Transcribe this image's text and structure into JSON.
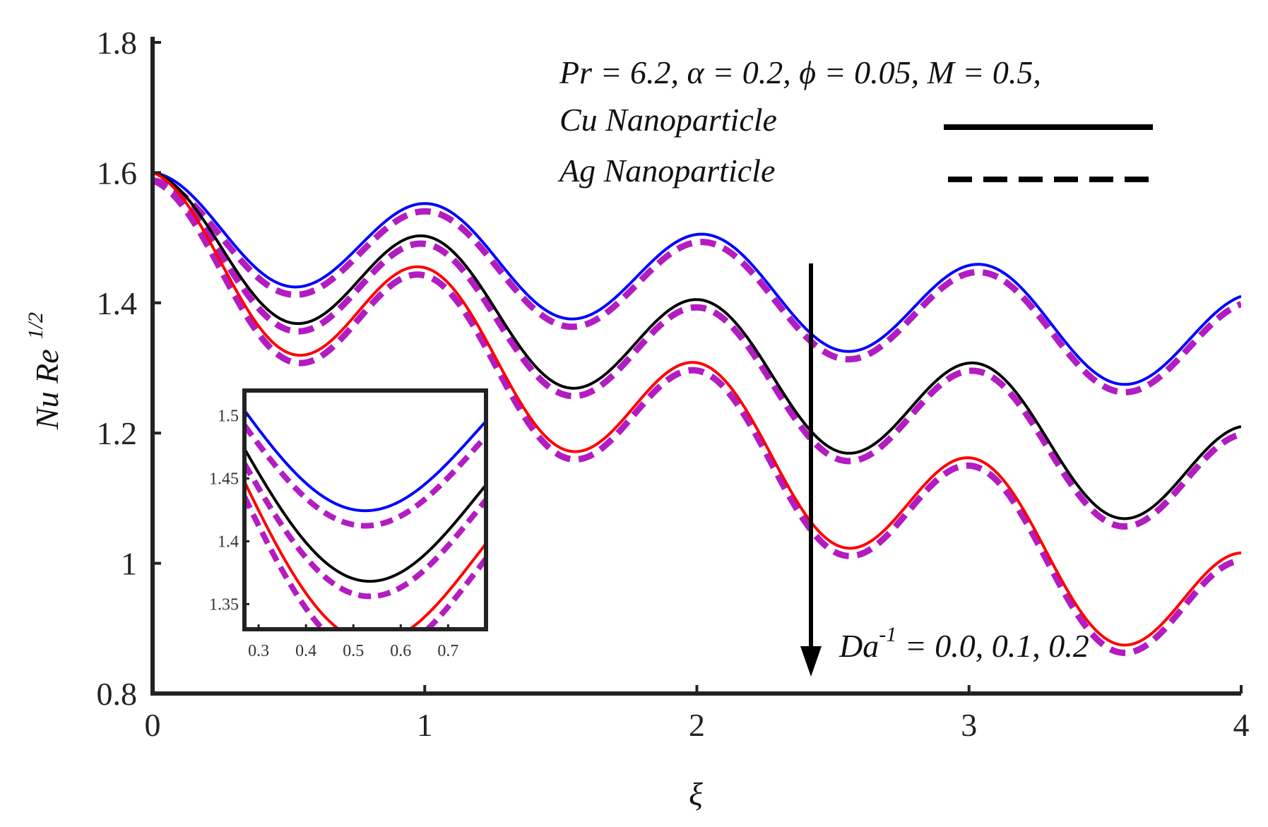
{
  "chart_data": {
    "type": "line",
    "xlabel": "ξ",
    "ylabel": {
      "base": "Nu Re",
      "exponent": "1/2"
    },
    "xlim": [
      0,
      4
    ],
    "ylim": [
      0.8,
      1.8
    ],
    "xticks": [
      "0",
      "1",
      "2",
      "3",
      "4"
    ],
    "yticks": [
      "0.8",
      "1",
      "1.2",
      "1.4",
      "1.6",
      "1.8"
    ],
    "annotation": {
      "params": "Pr = 6.2, α = 0.2, ϕ = 0.05, M = 0.5,",
      "legend": [
        {
          "label": "Cu  Nanoparticle",
          "style": "solid"
        },
        {
          "label": "Ag Nanoparticle",
          "style": "dashed"
        }
      ],
      "arrow_text": {
        "base": "Da",
        "exponent": "-1",
        "rest": " = 0.0, 0.1, 0.2"
      }
    },
    "model": "y = 1.6 - a*x + b*(cos(2*pi*x) - 1) + c*x*sin(2*pi*x)",
    "series": [
      {
        "name": "Cu, Da^-1 = 0.0",
        "nanoparticle": "Cu",
        "Da_inv": 0.0,
        "style": "solid",
        "color": "#0000ff",
        "params": {
          "a": 0.0475,
          "b": 0.0755,
          "c": 0.0078,
          "dy": 0.0
        }
      },
      {
        "name": "Cu, Da^-1 = 0.1",
        "nanoparticle": "Cu",
        "Da_inv": 0.1,
        "style": "solid",
        "color": "#000000",
        "params": {
          "a": 0.0975,
          "b": 0.0905,
          "c": 0.0072,
          "dy": 0.0
        }
      },
      {
        "name": "Cu, Da^-1 = 0.2",
        "nanoparticle": "Cu",
        "Da_inv": 0.2,
        "style": "solid",
        "color": "#ff0000",
        "params": {
          "a": 0.146,
          "b": 0.102,
          "c": 0.0066,
          "dy": 0.0
        }
      },
      {
        "name": "Ag, Da^-1 = 0.0",
        "nanoparticle": "Ag",
        "Da_inv": 0.0,
        "style": "dashed",
        "color": "#b31cc1",
        "params": {
          "a": 0.0475,
          "b": 0.0755,
          "c": 0.0078,
          "dy": -0.012
        }
      },
      {
        "name": "Ag, Da^-1 = 0.1",
        "nanoparticle": "Ag",
        "Da_inv": 0.1,
        "style": "dashed",
        "color": "#b31cc1",
        "params": {
          "a": 0.0975,
          "b": 0.0905,
          "c": 0.0072,
          "dy": -0.012
        }
      },
      {
        "name": "Ag, Da^-1 = 0.2",
        "nanoparticle": "Ag",
        "Da_inv": 0.2,
        "style": "dashed",
        "color": "#b31cc1",
        "params": {
          "a": 0.146,
          "b": 0.102,
          "c": 0.0066,
          "dy": -0.012
        }
      }
    ],
    "inset": {
      "xlim": [
        0.27,
        0.78
      ],
      "ylim": [
        1.33,
        1.52
      ],
      "xticks": [
        "0.3",
        "0.4",
        "0.5",
        "0.6",
        "0.7"
      ],
      "yticks": [
        "1.35",
        "1.4",
        "1.45",
        "1.5"
      ]
    }
  }
}
